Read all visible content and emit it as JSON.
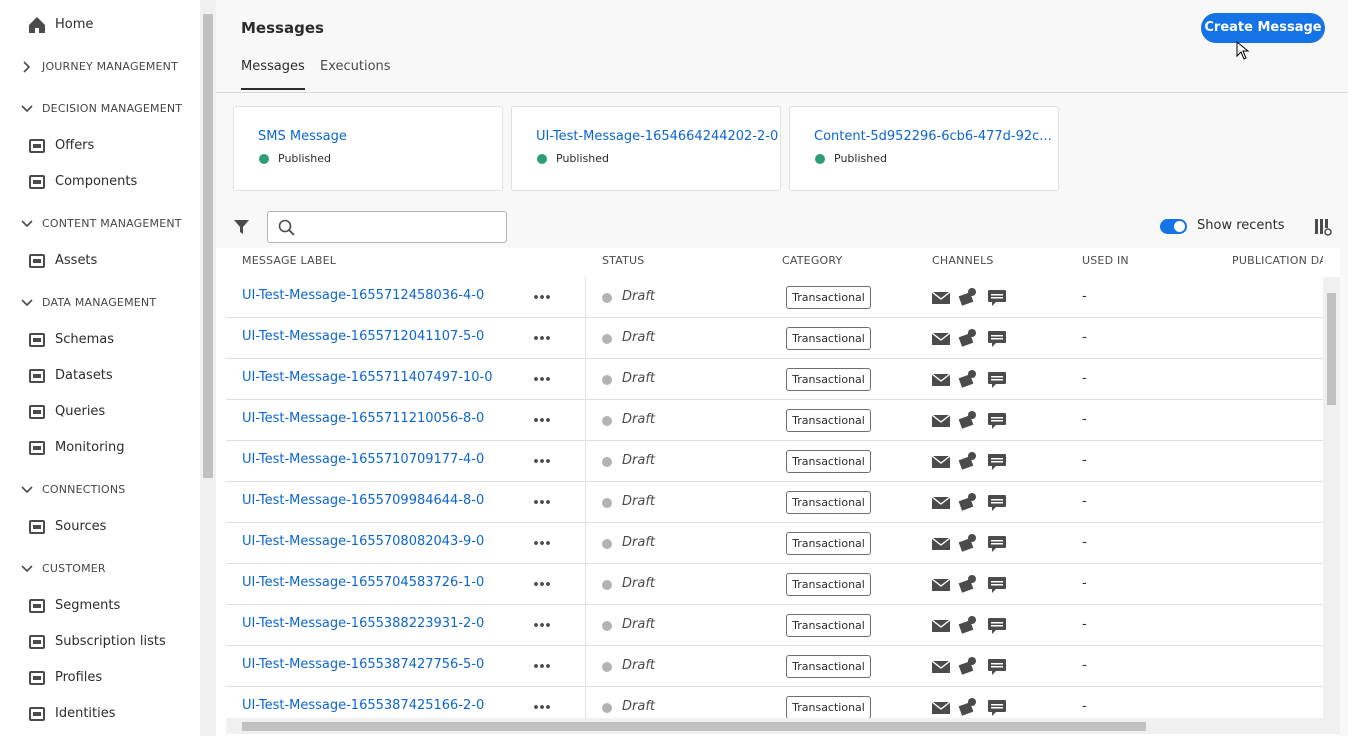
{
  "sidebar": {
    "home": "Home",
    "sections": [
      {
        "title": "JOURNEY MANAGEMENT",
        "collapsed": true,
        "items": []
      },
      {
        "title": "DECISION MANAGEMENT",
        "items": [
          "Offers",
          "Components"
        ]
      },
      {
        "title": "CONTENT MANAGEMENT",
        "items": [
          "Assets"
        ]
      },
      {
        "title": "DATA MANAGEMENT",
        "items": [
          "Schemas",
          "Datasets",
          "Queries",
          "Monitoring"
        ]
      },
      {
        "title": "CONNECTIONS",
        "items": [
          "Sources"
        ]
      },
      {
        "title": "CUSTOMER",
        "items": [
          "Segments",
          "Subscription lists",
          "Profiles",
          "Identities"
        ]
      }
    ]
  },
  "header": {
    "title": "Messages",
    "button": "Create Message",
    "tabs": [
      "Messages",
      "Executions"
    ]
  },
  "recents": [
    {
      "label": "SMS Message",
      "status": "Published"
    },
    {
      "label": "UI-Test-Message-1654664244202-2-0",
      "status": "Published"
    },
    {
      "label": "Content-5d952296-6cb6-477d-92c...",
      "status": "Published"
    }
  ],
  "toolbar": {
    "toggle": "Show recents"
  },
  "table": {
    "columns": [
      "MESSAGE LABEL",
      "STATUS",
      "CATEGORY",
      "CHANNELS",
      "USED IN",
      "PUBLICATION DATE"
    ],
    "rows": [
      {
        "label": "UI-Test-Message-1655712458036-4-0",
        "status": "Draft",
        "category": "Transactional",
        "used_in": "-"
      },
      {
        "label": "UI-Test-Message-1655712041107-5-0",
        "status": "Draft",
        "category": "Transactional",
        "used_in": "-"
      },
      {
        "label": "UI-Test-Message-1655711407497-10-0",
        "status": "Draft",
        "category": "Transactional",
        "used_in": "-"
      },
      {
        "label": "UI-Test-Message-1655711210056-8-0",
        "status": "Draft",
        "category": "Transactional",
        "used_in": "-"
      },
      {
        "label": "UI-Test-Message-1655710709177-4-0",
        "status": "Draft",
        "category": "Transactional",
        "used_in": "-"
      },
      {
        "label": "UI-Test-Message-1655709984644-8-0",
        "status": "Draft",
        "category": "Transactional",
        "used_in": "-"
      },
      {
        "label": "UI-Test-Message-1655708082043-9-0",
        "status": "Draft",
        "category": "Transactional",
        "used_in": "-"
      },
      {
        "label": "UI-Test-Message-1655704583726-1-0",
        "status": "Draft",
        "category": "Transactional",
        "used_in": "-"
      },
      {
        "label": "UI-Test-Message-1655388223931-2-0",
        "status": "Draft",
        "category": "Transactional",
        "used_in": "-"
      },
      {
        "label": "UI-Test-Message-1655387427756-5-0",
        "status": "Draft",
        "category": "Transactional",
        "used_in": "-"
      },
      {
        "label": "UI-Test-Message-1655387425166-2-0",
        "status": "Draft",
        "category": "Transactional",
        "used_in": "-"
      }
    ]
  }
}
